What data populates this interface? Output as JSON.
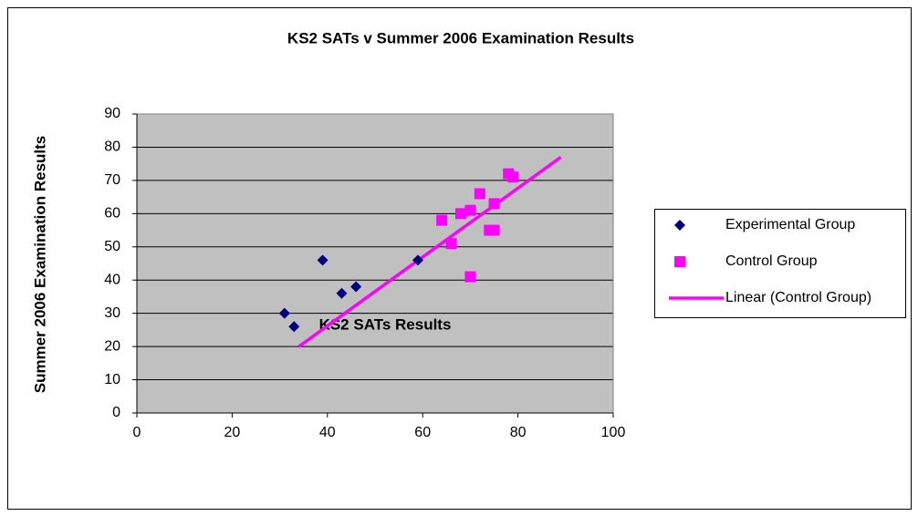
{
  "chart_data": {
    "type": "scatter",
    "title": "KS2 SATs v Summer 2006 Examination Results",
    "x_label": "KS2 SATs Results",
    "y_label": "Summer 2006 Examination Results",
    "xlim": [
      0,
      100
    ],
    "xticks": [
      0,
      20,
      40,
      60,
      80,
      100
    ],
    "ylim": [
      0,
      90
    ],
    "yticks": [
      0,
      10,
      20,
      30,
      40,
      50,
      60,
      70,
      80,
      90
    ],
    "grid": true,
    "legend": "right",
    "series": [
      {
        "name": "Experimental Group",
        "color": "#000080",
        "marker": "diamond",
        "x": [
          31,
          33,
          39,
          43,
          46,
          59
        ],
        "values": [
          30,
          26,
          46,
          36,
          38,
          46
        ]
      },
      {
        "name": "Control Group",
        "color": "#ff00ff",
        "marker": "square",
        "x": [
          64,
          66,
          68,
          70,
          72,
          74,
          75,
          75,
          78,
          79,
          70
        ],
        "values": [
          58,
          51,
          60,
          61,
          66,
          55,
          55,
          63,
          72,
          71,
          41
        ]
      }
    ],
    "trendline": {
      "name": "Linear (Control Group)",
      "color": "#ff00ff",
      "x": [
        34,
        89
      ],
      "values": [
        20,
        77
      ]
    }
  }
}
